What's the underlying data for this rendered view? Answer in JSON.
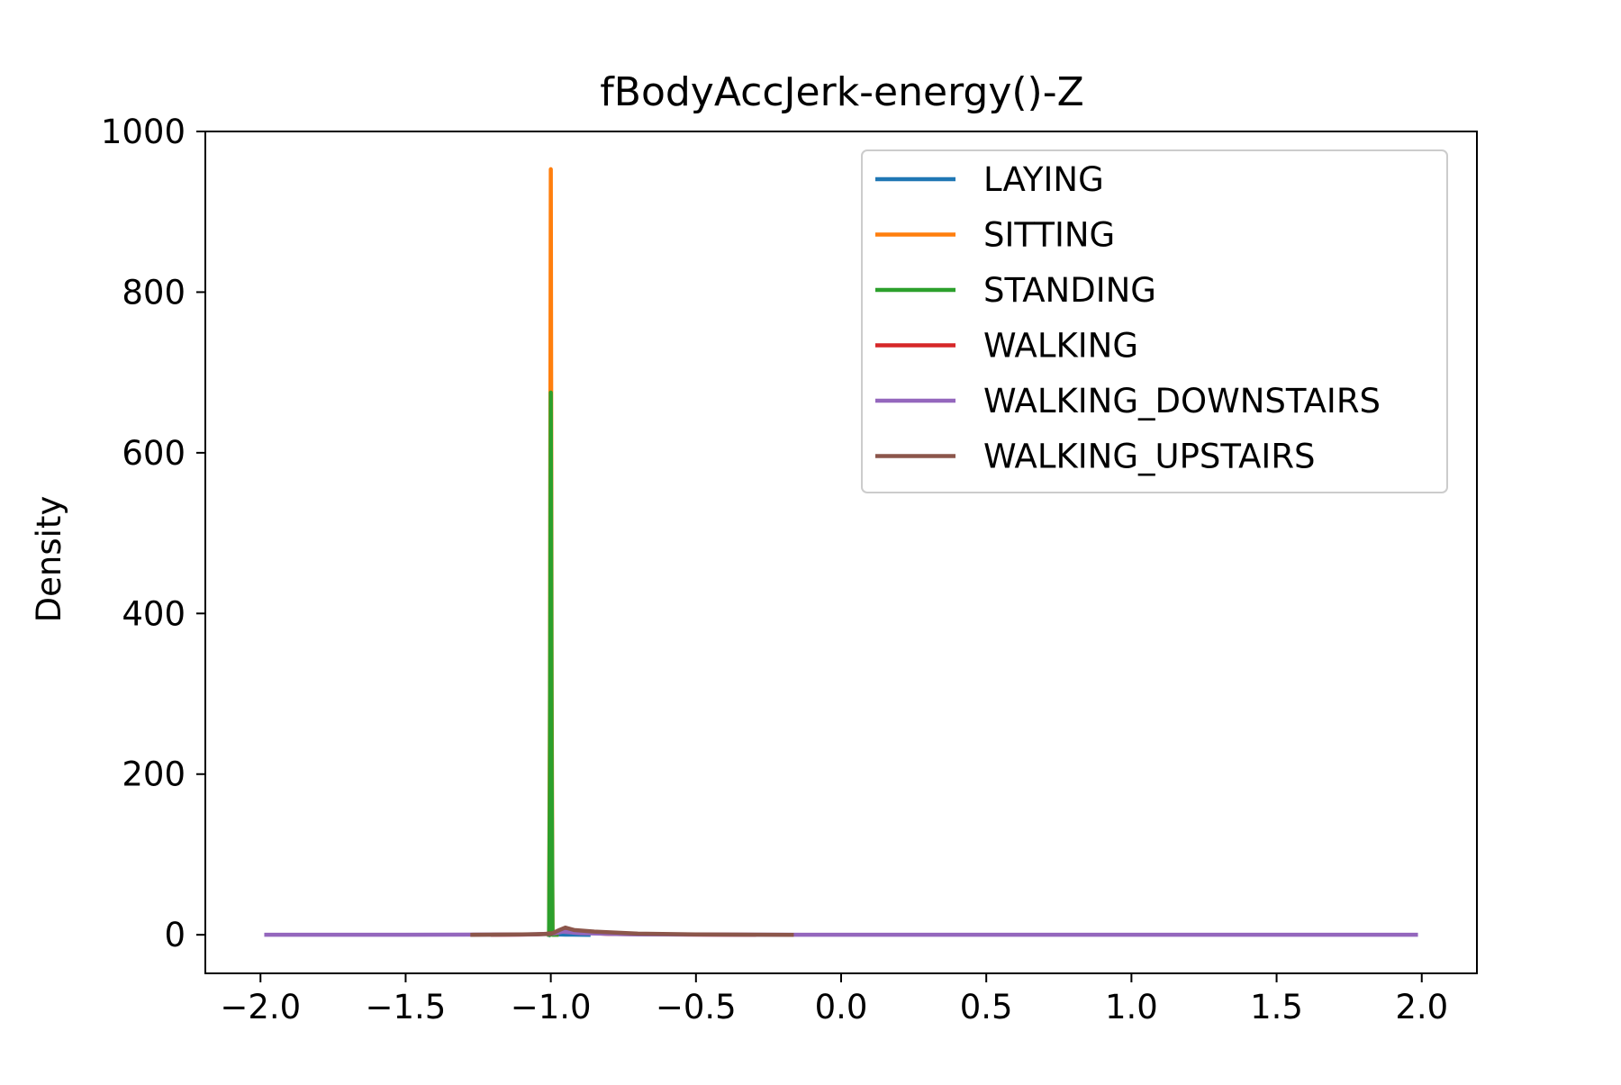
{
  "chart_data": {
    "type": "line",
    "title": "fBodyAccJerk-energy()-Z",
    "xlabel": "",
    "ylabel": "Density",
    "xlim": [
      -2.19,
      2.19
    ],
    "ylim": [
      -48,
      1000
    ],
    "x_ticks": [
      -2.0,
      -1.5,
      -1.0,
      -0.5,
      0.0,
      0.5,
      1.0,
      1.5,
      2.0
    ],
    "x_tick_labels": [
      "−2.0",
      "−1.5",
      "−1.0",
      "−0.5",
      "0.0",
      "0.5",
      "1.0",
      "1.5",
      "2.0"
    ],
    "y_ticks": [
      0,
      200,
      400,
      600,
      800,
      1000
    ],
    "y_tick_labels": [
      "0",
      "200",
      "400",
      "600",
      "800",
      "1000"
    ],
    "grid": false,
    "legend_position": "top-right",
    "series": [
      {
        "name": "LAYING",
        "color": "#1f77b4",
        "points": [
          [
            -1.005,
            0
          ],
          [
            -1.0,
            2
          ],
          [
            -0.995,
            0
          ],
          [
            -0.98,
            0.5
          ],
          [
            -0.95,
            0.2
          ],
          [
            -0.87,
            0
          ]
        ]
      },
      {
        "name": "SITTING",
        "color": "#ff7f0e",
        "points": [
          [
            -1.006,
            0
          ],
          [
            -1.003,
            300
          ],
          [
            -1.0,
            953
          ],
          [
            -0.997,
            300
          ],
          [
            -0.994,
            0
          ],
          [
            -0.98,
            0
          ]
        ]
      },
      {
        "name": "STANDING",
        "color": "#2ca02c",
        "points": [
          [
            -1.006,
            0
          ],
          [
            -1.003,
            200
          ],
          [
            -1.0,
            675
          ],
          [
            -0.997,
            200
          ],
          [
            -0.994,
            0
          ],
          [
            -0.98,
            0
          ]
        ]
      },
      {
        "name": "WALKING",
        "color": "#d62728",
        "points": [
          [
            -1.2,
            0
          ],
          [
            -1.05,
            0.5
          ],
          [
            -0.98,
            2
          ],
          [
            -0.95,
            6
          ],
          [
            -0.9,
            3
          ],
          [
            -0.8,
            1
          ],
          [
            -0.6,
            0.5
          ],
          [
            -0.3,
            0
          ]
        ]
      },
      {
        "name": "WALKING_DOWNSTAIRS",
        "color": "#9467bd",
        "points": [
          [
            -1.98,
            0
          ],
          [
            -1.5,
            0
          ],
          [
            -1.1,
            0.3
          ],
          [
            -1.0,
            1
          ],
          [
            -0.96,
            4
          ],
          [
            -0.9,
            2
          ],
          [
            -0.7,
            0.5
          ],
          [
            0.0,
            0
          ],
          [
            1.0,
            0
          ],
          [
            1.98,
            0
          ]
        ]
      },
      {
        "name": "WALKING_UPSTAIRS",
        "color": "#8c564b",
        "points": [
          [
            -1.27,
            0
          ],
          [
            -1.1,
            0.5
          ],
          [
            -1.0,
            1
          ],
          [
            -0.97,
            6
          ],
          [
            -0.95,
            9
          ],
          [
            -0.92,
            6
          ],
          [
            -0.85,
            4
          ],
          [
            -0.7,
            1.5
          ],
          [
            -0.5,
            0.5
          ],
          [
            -0.17,
            0
          ]
        ]
      }
    ]
  }
}
